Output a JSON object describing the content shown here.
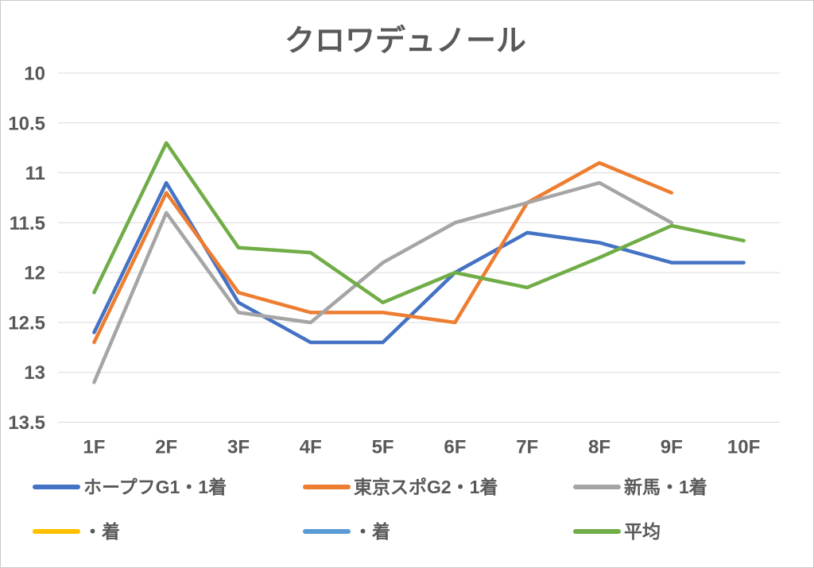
{
  "title": "クロワデュノール",
  "colors": {
    "text": "#595959",
    "gridline": "#d9d9d9",
    "border": "#c9c9c9",
    "background": "#ffffff"
  },
  "chart_data": {
    "type": "line",
    "title": "クロワデュノール",
    "categories": [
      "1F",
      "2F",
      "3F",
      "4F",
      "5F",
      "6F",
      "7F",
      "8F",
      "9F",
      "10F"
    ],
    "xlabel": "",
    "ylabel": "",
    "y_axis": {
      "min": 10,
      "max": 13.5,
      "tick_step": 0.5,
      "reversed": true,
      "ticks": [
        "10",
        "10.5",
        "11",
        "11.5",
        "12",
        "12.5",
        "13",
        "13.5"
      ]
    },
    "grid": true,
    "legend_position": "bottom",
    "series": [
      {
        "name": "ホープフG1・1着",
        "color": "#4472C4",
        "values": [
          12.6,
          11.1,
          12.3,
          12.7,
          12.7,
          12.0,
          11.6,
          11.7,
          11.9,
          11.9
        ]
      },
      {
        "name": "東京スポG2・1着",
        "color": "#ED7D31",
        "values": [
          12.7,
          11.2,
          12.2,
          12.4,
          12.4,
          12.5,
          11.3,
          10.9,
          11.2
        ]
      },
      {
        "name": "新馬・1着",
        "color": "#A5A5A5",
        "values": [
          13.1,
          11.4,
          12.4,
          12.5,
          11.9,
          11.5,
          11.3,
          11.1,
          11.5
        ]
      },
      {
        "name": "・着",
        "color": "#FFC000",
        "values": []
      },
      {
        "name": "・着",
        "color": "#5B9BD5",
        "values": []
      },
      {
        "name": "平均",
        "color": "#70AD47",
        "values": [
          12.2,
          10.7,
          11.75,
          11.8,
          12.3,
          12.0,
          12.15,
          11.85,
          11.53,
          11.68
        ]
      }
    ]
  }
}
